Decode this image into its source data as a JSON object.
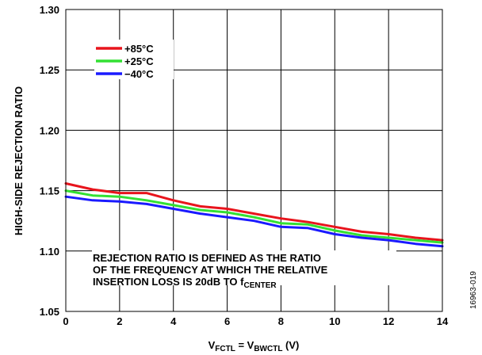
{
  "chart_data": {
    "type": "line",
    "ylabel": "HIGH-SIDE REJECTION RATIO",
    "xlabel": {
      "v1": "V",
      "sub1": "FCTL",
      "eq": " = V",
      "sub2": "BWCTL",
      "unit": " (V)"
    },
    "xlim": [
      0,
      14
    ],
    "ylim": [
      1.05,
      1.3
    ],
    "x_ticks": [
      "0",
      "2",
      "4",
      "6",
      "8",
      "10",
      "12",
      "14"
    ],
    "y_ticks": [
      "1.05",
      "1.10",
      "1.15",
      "1.20",
      "1.25",
      "1.30"
    ],
    "grid": true,
    "legend_position": "top-left",
    "figure_id": "16963-019",
    "annotation": {
      "line1": "REJECTION RATIO IS DEFINED AS THE RATIO",
      "line2": "OF THE FREQUENCY AT WHICH THE RELATIVE",
      "line3_main": "INSERTION LOSS IS 20dB TO f",
      "line3_sub": "CENTER"
    },
    "x": [
      0,
      1,
      2,
      3,
      4,
      5,
      6,
      7,
      8,
      9,
      10,
      11,
      12,
      13,
      14
    ],
    "series": [
      {
        "name": "+85°C",
        "color": "#e8141c",
        "values": [
          1.156,
          1.151,
          1.148,
          1.148,
          1.142,
          1.137,
          1.135,
          1.131,
          1.127,
          1.124,
          1.12,
          1.116,
          1.114,
          1.111,
          1.109
        ]
      },
      {
        "name": "+25°C",
        "color": "#33e033",
        "values": [
          1.15,
          1.146,
          1.145,
          1.142,
          1.138,
          1.134,
          1.132,
          1.128,
          1.123,
          1.122,
          1.117,
          1.113,
          1.111,
          1.109,
          1.107
        ]
      },
      {
        "name": "−40°C",
        "color": "#1a1aff",
        "values": [
          1.145,
          1.142,
          1.141,
          1.139,
          1.135,
          1.131,
          1.128,
          1.125,
          1.12,
          1.119,
          1.114,
          1.111,
          1.109,
          1.106,
          1.104
        ]
      }
    ]
  }
}
